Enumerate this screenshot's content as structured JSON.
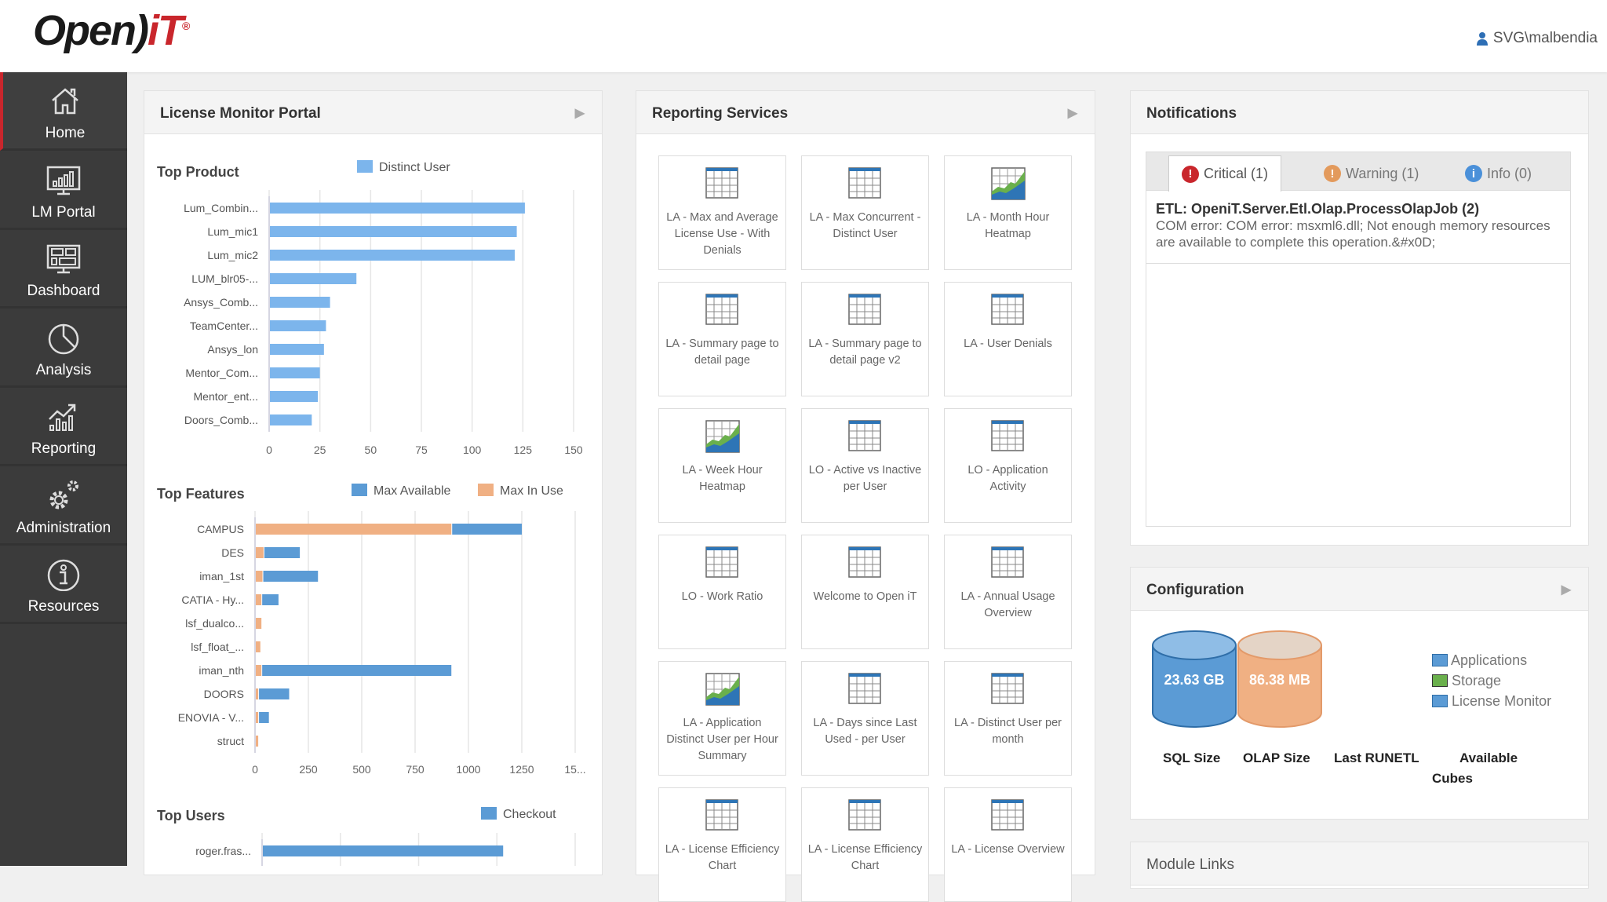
{
  "header": {
    "logo_text": "OpeniT",
    "username": "SVG\\malbendia"
  },
  "sidebar": {
    "items": [
      {
        "label": "Home",
        "icon": "home-icon",
        "active": true
      },
      {
        "label": "LM Portal",
        "icon": "monitor-chart-icon"
      },
      {
        "label": "Dashboard",
        "icon": "dashboard-icon"
      },
      {
        "label": "Analysis",
        "icon": "pie-chart-icon"
      },
      {
        "label": "Reporting",
        "icon": "trend-chart-icon"
      },
      {
        "label": "Administration",
        "icon": "gears-icon"
      },
      {
        "label": "Resources",
        "icon": "info-icon"
      }
    ]
  },
  "lm_portal": {
    "title": "License Monitor Portal"
  },
  "chart_data": [
    {
      "type": "bar",
      "orientation": "horizontal",
      "title": "Top Product",
      "legend": [
        "Distinct User"
      ],
      "colors": [
        "#7cb5ec"
      ],
      "categories": [
        "Lum_Combin...",
        "Lum_mic1",
        "Lum_mic2",
        "LUM_blr05-...",
        "Ansys_Comb...",
        "TeamCenter...",
        "Ansys_lon",
        "Mentor_Com...",
        "Mentor_ent...",
        "Doors_Comb..."
      ],
      "series": [
        {
          "name": "Distinct User",
          "values": [
            126,
            122,
            121,
            43,
            30,
            28,
            27,
            25,
            24,
            21
          ]
        }
      ],
      "xticks": [
        "0",
        "25",
        "50",
        "75",
        "100",
        "125",
        "150"
      ],
      "xlim": [
        0,
        150
      ],
      "grid": true
    },
    {
      "type": "bar",
      "orientation": "horizontal",
      "stacked": true,
      "title": "Top Features",
      "legend": [
        "Max Available",
        "Max In Use"
      ],
      "colors": [
        "#5b9bd5",
        "#f0b083"
      ],
      "categories": [
        "CAMPUS",
        "DES",
        "iman_1st",
        "CATIA - Hy...",
        "lsf_dualco...",
        "lsf_float_...",
        "iman_nth",
        "DOORS",
        "ENOVIA - V...",
        "struct"
      ],
      "series": [
        {
          "name": "Max In Use",
          "values": [
            920,
            40,
            35,
            30,
            30,
            25,
            30,
            15,
            15,
            15
          ]
        },
        {
          "name": "Max Available",
          "values": [
            330,
            170,
            260,
            80,
            0,
            0,
            890,
            145,
            50,
            0
          ]
        }
      ],
      "xticks": [
        "0",
        "250",
        "500",
        "750",
        "1000",
        "1250",
        "15..."
      ],
      "xlim": [
        0,
        1500
      ],
      "grid": true
    },
    {
      "type": "bar",
      "orientation": "horizontal",
      "title": "Top Users",
      "legend": [
        "Checkout"
      ],
      "colors": [
        "#5b9bd5"
      ],
      "categories": [
        "roger.fras..."
      ],
      "series": [
        {
          "name": "Checkout",
          "values": [
            0.77
          ]
        }
      ],
      "grid": true
    }
  ],
  "reporting": {
    "title": "Reporting Services",
    "tiles": [
      {
        "label": "LA - Max and Average License Use - With Denials",
        "icon": "table-icon"
      },
      {
        "label": "LA - Max Concurrent - Distinct User",
        "icon": "table-icon"
      },
      {
        "label": "LA - Month Hour Heatmap",
        "icon": "area-chart-icon"
      },
      {
        "label": "LA - Summary page to detail page",
        "icon": "table-icon"
      },
      {
        "label": "LA - Summary page to detail page v2",
        "icon": "table-icon"
      },
      {
        "label": "LA - User Denials",
        "icon": "table-icon"
      },
      {
        "label": "LA - Week Hour Heatmap",
        "icon": "area-chart-icon"
      },
      {
        "label": "LO - Active vs Inactive per User",
        "icon": "table-icon"
      },
      {
        "label": "LO - Application Activity",
        "icon": "table-icon"
      },
      {
        "label": "LO - Work Ratio",
        "icon": "table-icon"
      },
      {
        "label": "Welcome to Open iT",
        "icon": "table-icon"
      },
      {
        "label": "LA - Annual Usage Overview",
        "icon": "table-icon"
      },
      {
        "label": "LA - Application Distinct User per Hour Summary",
        "icon": "area-chart-icon"
      },
      {
        "label": "LA - Days since Last Used - per User",
        "icon": "table-icon"
      },
      {
        "label": "LA - Distinct User per month",
        "icon": "table-icon"
      },
      {
        "label": "LA - License Efficiency Chart",
        "icon": "table-icon"
      },
      {
        "label": "LA - License Efficiency Chart",
        "icon": "table-icon"
      },
      {
        "label": "LA - License Overview",
        "icon": "table-icon"
      }
    ]
  },
  "notifications": {
    "title": "Notifications",
    "tabs": [
      {
        "label": "Critical (1)",
        "color": "#c9262c",
        "glyph": "!"
      },
      {
        "label": "Warning (1)",
        "color": "#e39a5c",
        "glyph": "!"
      },
      {
        "label": "Info (0)",
        "color": "#4a90d9",
        "glyph": "i"
      }
    ],
    "message_title": "ETL: OpeniT.Server.Etl.Olap.ProcessOlapJob (2)",
    "message_body": "COM error: COM error: msxml6.dll; Not enough memory resources are available to complete this operation.&#x0D;"
  },
  "configuration": {
    "title": "Configuration",
    "sql_size": "23.63 GB",
    "olap_size": "86.38 MB",
    "labels": {
      "sql": "SQL Size",
      "olap": "OLAP Size",
      "last_runetl": "Last RUNETL",
      "available": "Available",
      "cubes": "Cubes"
    },
    "legend": [
      {
        "label": "Applications",
        "color": "#5b9bd5"
      },
      {
        "label": "Storage",
        "color": "#6ab04c"
      },
      {
        "label": "License Monitor",
        "color": "#5b9bd5"
      }
    ]
  },
  "module_links": {
    "title": "Module Links"
  }
}
